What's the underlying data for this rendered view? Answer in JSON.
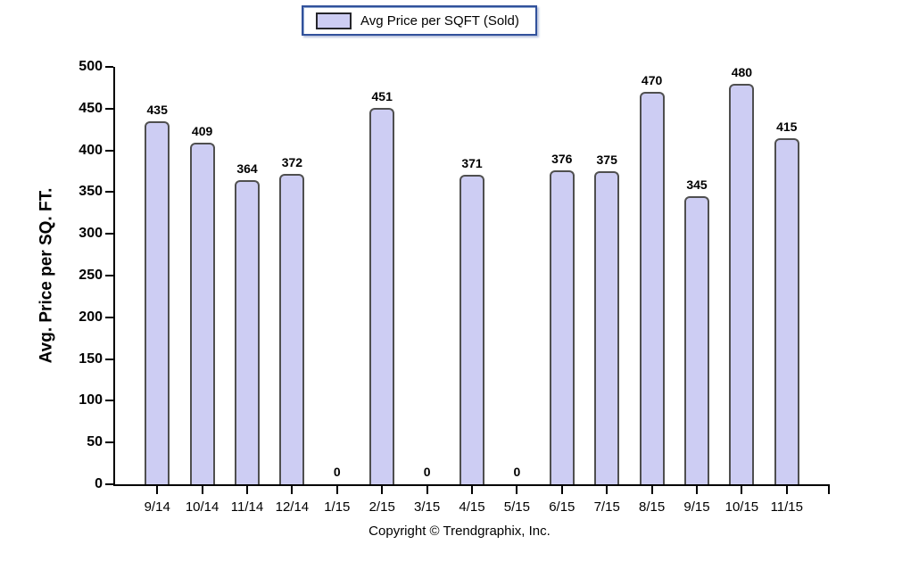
{
  "legend": {
    "label": "Avg Price per SQFT (Sold)"
  },
  "footer": {
    "copyright": "Copyright © Trendgraphix, Inc."
  },
  "chart_data": {
    "type": "bar",
    "title": "Avg Price per SQFT (Sold)",
    "categories": [
      "9/14",
      "10/14",
      "11/14",
      "12/14",
      "1/15",
      "2/15",
      "3/15",
      "4/15",
      "5/15",
      "6/15",
      "7/15",
      "8/15",
      "9/15",
      "10/15",
      "11/15"
    ],
    "values": [
      435,
      409,
      364,
      372,
      0,
      451,
      0,
      371,
      0,
      376,
      375,
      470,
      345,
      480,
      415
    ],
    "xlabel": "",
    "ylabel": "Avg. Price per SQ. FT.",
    "ylim": [
      0,
      500
    ],
    "ytick_step": 50,
    "grid": false,
    "bar_labels": true,
    "legend_position": "top-center",
    "colors": {
      "bar_fill": "#cdcdf3",
      "bar_border": "#4f4f4f",
      "legend_border": "#31519b",
      "axis": "#000000",
      "text": "#000000"
    }
  }
}
